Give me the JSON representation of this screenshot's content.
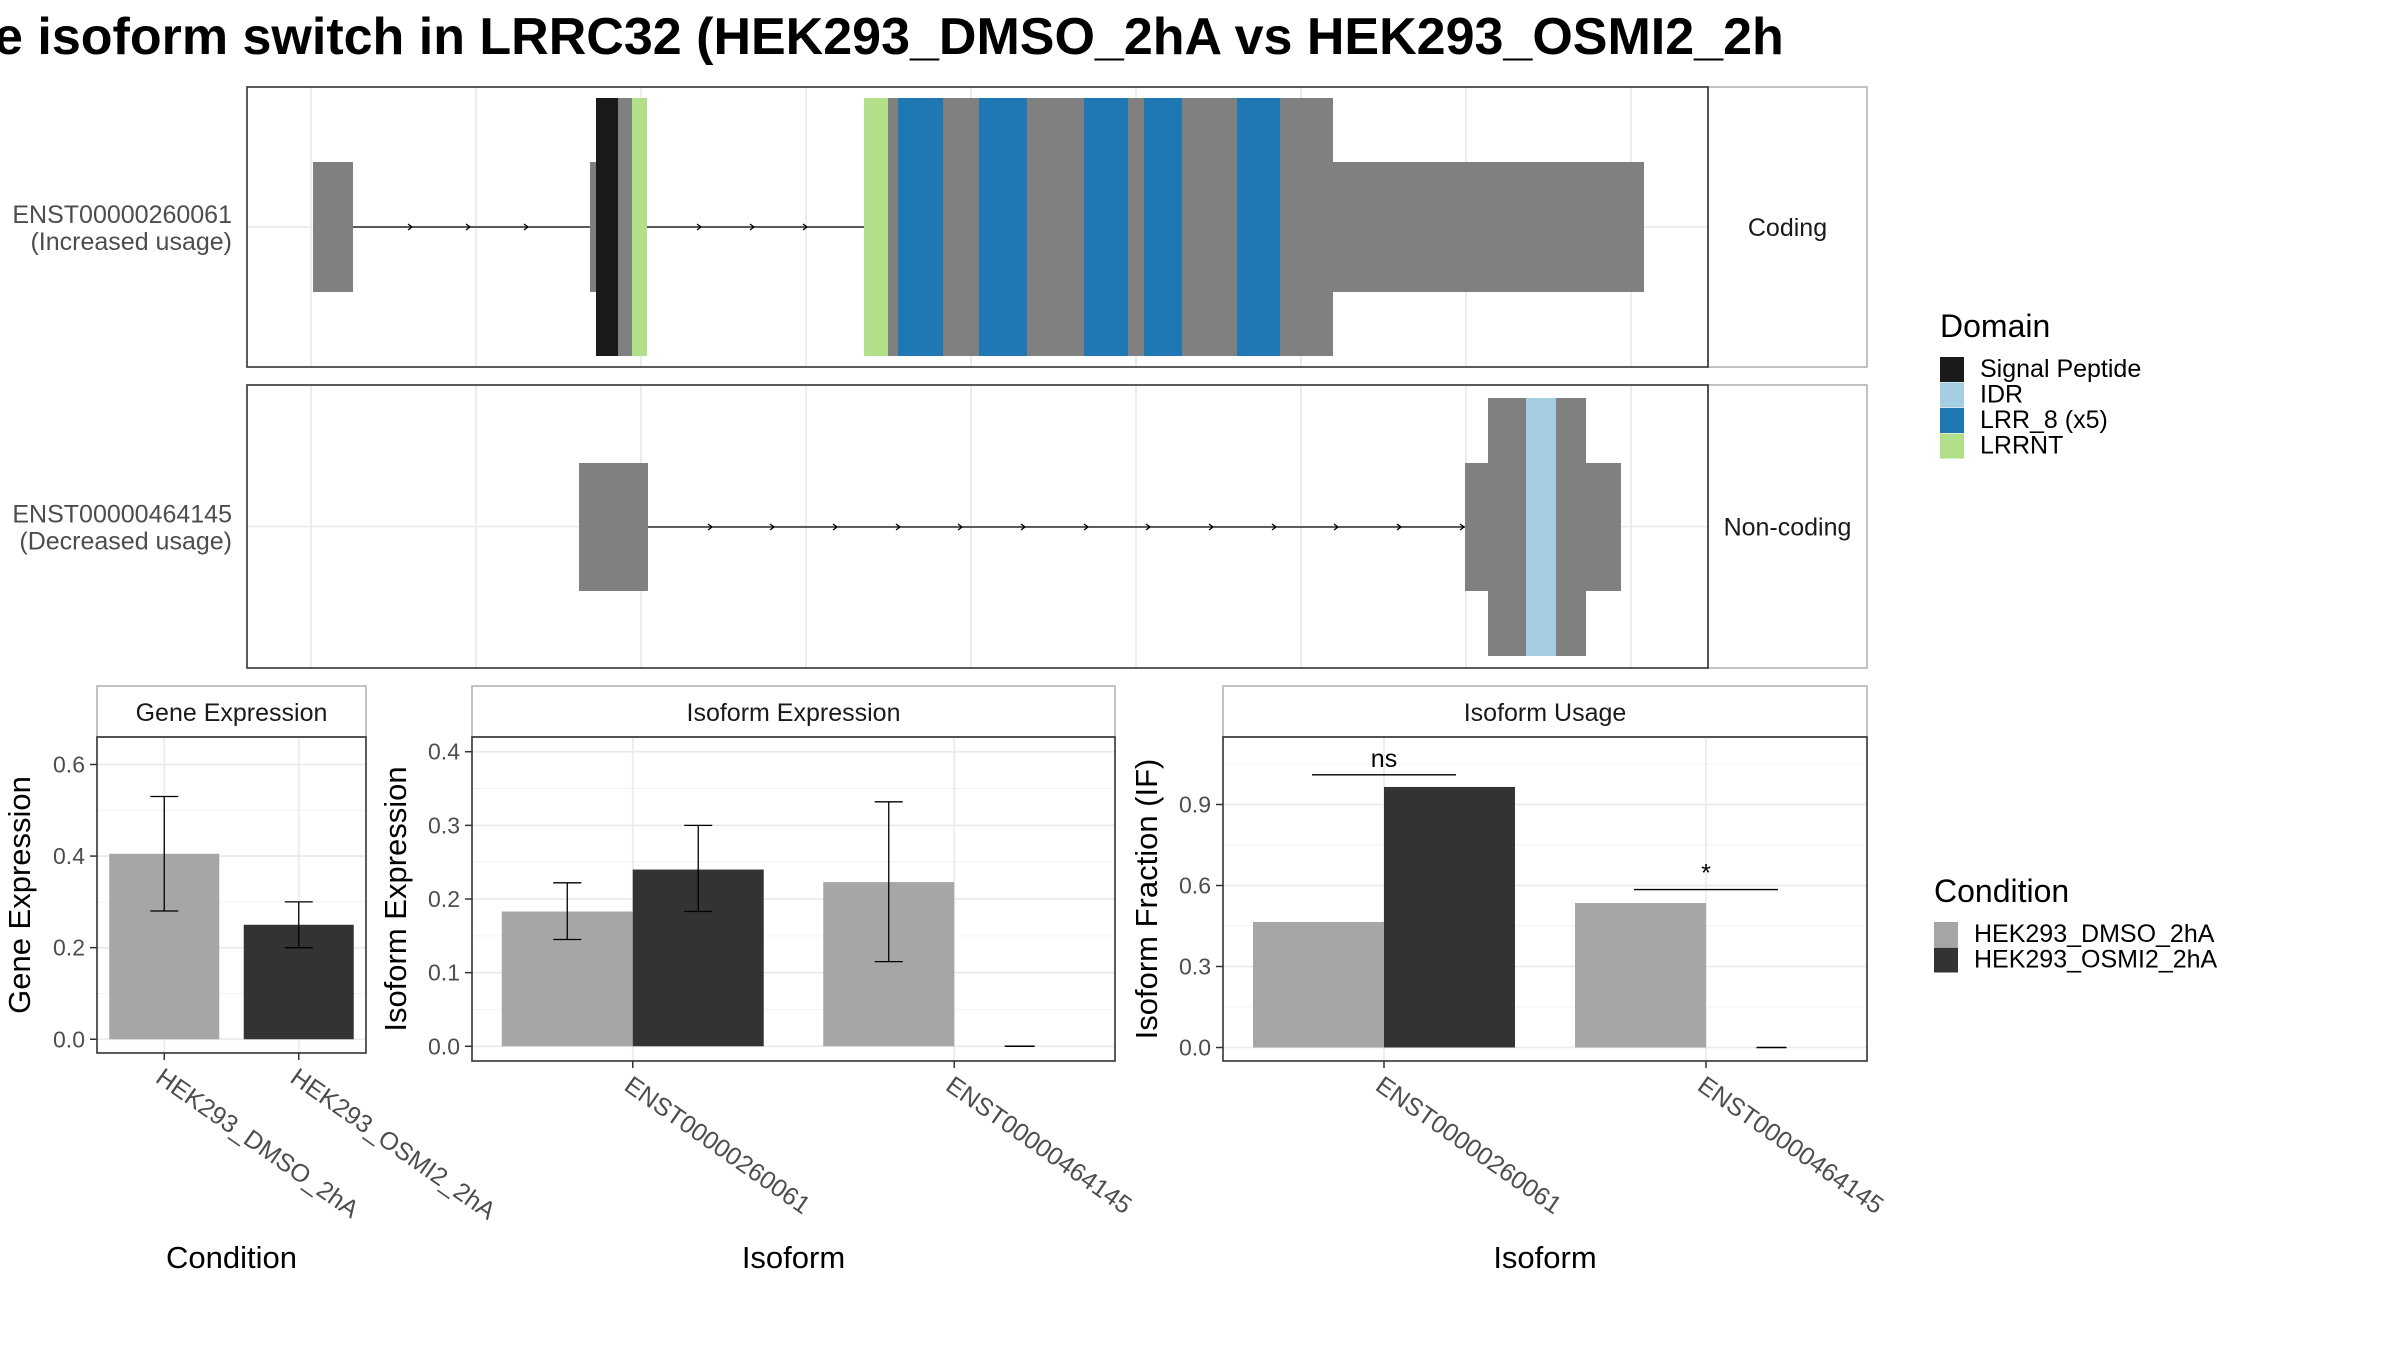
{
  "title": "e isoform switch in LRRC32 (HEK293_DMSO_2hA vs HEK293_OSMI2_2h",
  "transcripts": [
    {
      "id": "ENST00000260061",
      "usage": "(Increased usage)",
      "strip": "Coding"
    },
    {
      "id": "ENST00000464145",
      "usage": "(Decreased usage)",
      "strip": "Non-coding"
    }
  ],
  "domain_legend": {
    "title": "Domain",
    "items": [
      {
        "label": "Signal Peptide",
        "color": "#1a1a1a"
      },
      {
        "label": "IDR",
        "color": "#a6cee3"
      },
      {
        "label": "LRR_8 (x5)",
        "color": "#1f78b4"
      },
      {
        "label": "LRRNT",
        "color": "#b2df8a"
      }
    ]
  },
  "condition_legend": {
    "title": "Condition",
    "items": [
      {
        "label": "HEK293_DMSO_2hA",
        "color": "#a6a6a6"
      },
      {
        "label": "HEK293_OSMI2_2hA",
        "color": "#333333"
      }
    ]
  },
  "chart_data": [
    {
      "type": "bar",
      "strip": "Gene Expression",
      "xlabel": "Condition",
      "ylabel": "Gene Expression",
      "categories": [
        "HEK293_DMSO_2hA",
        "HEK293_OSMI2_2hA"
      ],
      "values": [
        0.405,
        0.25
      ],
      "err_low": [
        0.28,
        0.2
      ],
      "err_high": [
        0.53,
        0.3
      ],
      "ylim": [
        -0.03,
        0.66
      ],
      "yticks": [
        "0.0",
        "0.2",
        "0.4",
        "0.6"
      ],
      "grid": true
    },
    {
      "type": "bar",
      "strip": "Isoform Expression",
      "xlabel": "Isoform",
      "ylabel": "Isoform Expression",
      "categories": [
        "ENST00000260061",
        "ENST00000464145"
      ],
      "series": [
        {
          "name": "HEK293_DMSO_2hA",
          "values": [
            0.183,
            0.223
          ],
          "err_low": [
            0.145,
            0.115
          ],
          "err_high": [
            0.222,
            0.332
          ]
        },
        {
          "name": "HEK293_OSMI2_2hA",
          "values": [
            0.24,
            0.0
          ],
          "err_low": [
            0.183,
            0.0
          ],
          "err_high": [
            0.3,
            0.0
          ]
        }
      ],
      "ylim": [
        -0.02,
        0.42
      ],
      "yticks": [
        "0.0",
        "0.1",
        "0.2",
        "0.3",
        "0.4"
      ],
      "grid": true
    },
    {
      "type": "bar",
      "strip": "Isoform Usage",
      "xlabel": "Isoform",
      "ylabel": "Isoform Fraction (IF)",
      "categories": [
        "ENST00000260061",
        "ENST00000464145"
      ],
      "series": [
        {
          "name": "HEK293_DMSO_2hA",
          "values": [
            0.465,
            0.535
          ]
        },
        {
          "name": "HEK293_OSMI2_2hA",
          "values": [
            0.965,
            0.0
          ]
        }
      ],
      "significance": [
        {
          "category": "ENST00000260061",
          "label": "ns",
          "y": 1.01
        },
        {
          "category": "ENST00000464145",
          "label": "*",
          "y": 0.585
        }
      ],
      "ylim": [
        -0.05,
        1.15
      ],
      "yticks": [
        "0.0",
        "0.3",
        "0.6",
        "0.9"
      ],
      "grid": true
    }
  ]
}
